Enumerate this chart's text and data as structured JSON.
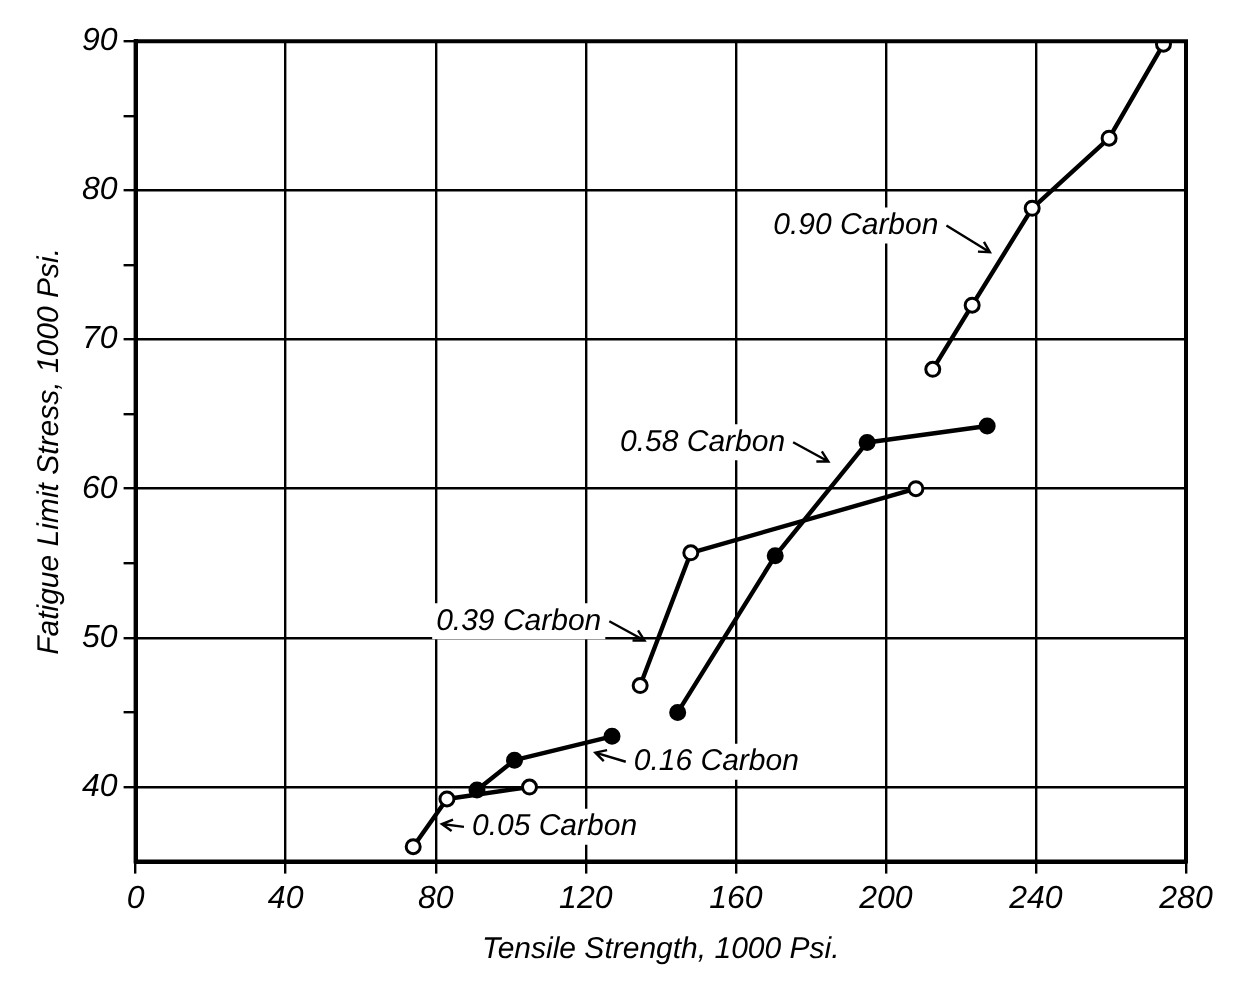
{
  "chart_data": {
    "type": "line",
    "xlabel": "Tensile Strength, 1000 Psi.",
    "ylabel": "Fatigue Limit Stress, 1000 Psi.",
    "xlim": [
      0,
      280
    ],
    "xticks": [
      0,
      40,
      80,
      120,
      160,
      200,
      240,
      280
    ],
    "ylim": [
      35,
      90
    ],
    "yticks": [
      40,
      {
        "value": 45,
        "label": null
      },
      50,
      {
        "value": 55,
        "label": null
      },
      60,
      {
        "value": 65,
        "label": null
      },
      70,
      {
        "value": 75,
        "label": null
      },
      80,
      {
        "value": 85,
        "label": null
      },
      90
    ],
    "grid": true,
    "marker": "circle",
    "legend": false,
    "series": [
      {
        "color": "#000000",
        "x": [
          74,
          83,
          105
        ],
        "values": [
          36,
          39.2,
          40
        ]
      },
      {
        "color": "#000000",
        "x": [
          91,
          101,
          127
        ],
        "values": [
          39.8,
          41.8,
          43.4
        ]
      },
      {
        "color": "#000000",
        "x": [
          134.5,
          148,
          208
        ],
        "values": [
          46.8,
          55.7,
          60
        ]
      },
      {
        "color": "#000000",
        "x": [
          144.5,
          170.5,
          195,
          227
        ],
        "values": [
          45,
          55.5,
          63.1,
          64.2
        ]
      },
      {
        "color": "#000000",
        "x": [
          212.5,
          223,
          239,
          259.5,
          274
        ],
        "values": [
          68,
          72.3,
          78.8,
          83.5,
          89.8
        ]
      }
    ],
    "annotations": [
      {
        "text": "0.05 Carbon",
        "x": 79,
        "y": 37.6
      },
      {
        "text": "0.16 Carbon",
        "x": 120,
        "y": 42.5
      },
      {
        "text": "0.39 Carbon",
        "x": 138,
        "y": 49.5
      },
      {
        "text": "0.58 Carbon",
        "x": 187,
        "y": 61.5
      },
      {
        "text": "0.90 Carbon",
        "x": 230,
        "y": 75.5
      }
    ]
  }
}
